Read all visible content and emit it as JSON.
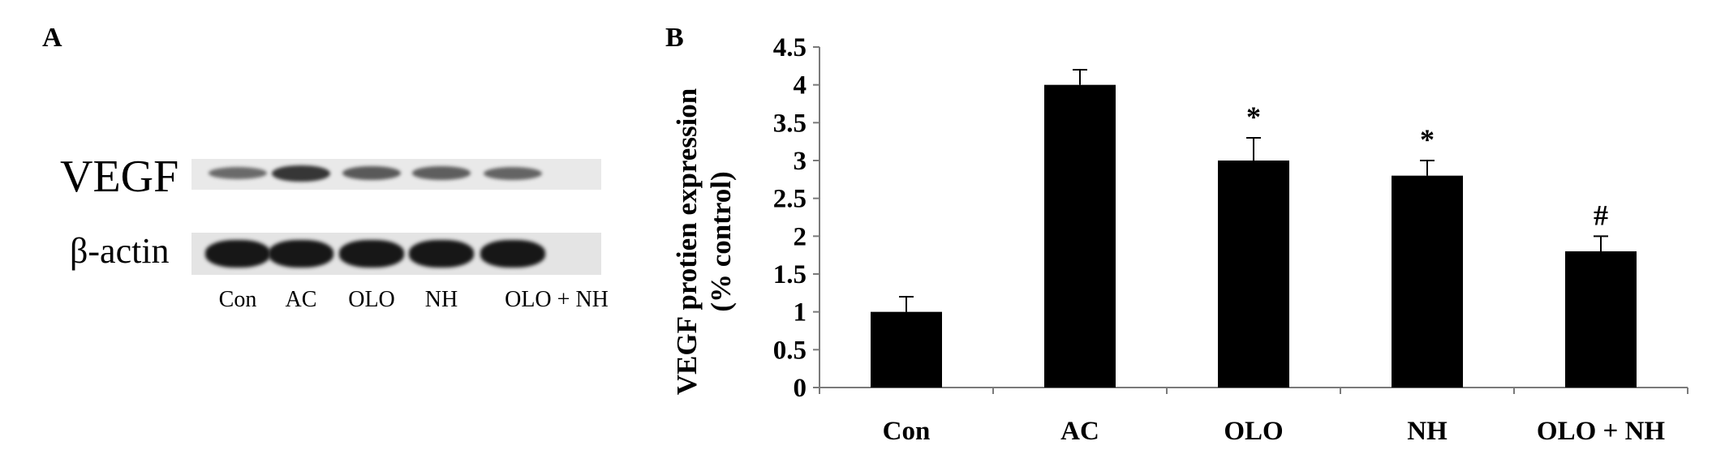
{
  "panel_a": {
    "letter": "A",
    "band_labels": {
      "vegf": "VEGF",
      "actin": "β-actin"
    },
    "lanes": [
      "Con",
      "AC",
      "OLO",
      "NH",
      "OLO + NH"
    ],
    "vegf_intensity": [
      0.45,
      0.9,
      0.6,
      0.55,
      0.5
    ],
    "actin_intensity": [
      0.95,
      0.95,
      0.95,
      0.95,
      0.95
    ]
  },
  "panel_b": {
    "letter": "B"
  },
  "chart_data": {
    "type": "bar",
    "categories": [
      "Con",
      "AC",
      "OLO",
      "NH",
      "OLO + NH"
    ],
    "series": [
      {
        "values": [
          1.0,
          4.0,
          3.0,
          2.8,
          1.8
        ],
        "errors": [
          0.2,
          0.2,
          0.3,
          0.2,
          0.2
        ]
      }
    ],
    "annotations": [
      "",
      "",
      "*",
      "*",
      "#"
    ],
    "ylabel_line1": "VEGF protien expression",
    "ylabel_line2": "(% control)",
    "xlabel": "",
    "title": "",
    "ylim": [
      0,
      4.5
    ],
    "yticks": [
      0,
      0.5,
      1,
      1.5,
      2,
      2.5,
      3,
      3.5,
      4,
      4.5
    ],
    "bar_color": "#000000",
    "grid": false
  }
}
